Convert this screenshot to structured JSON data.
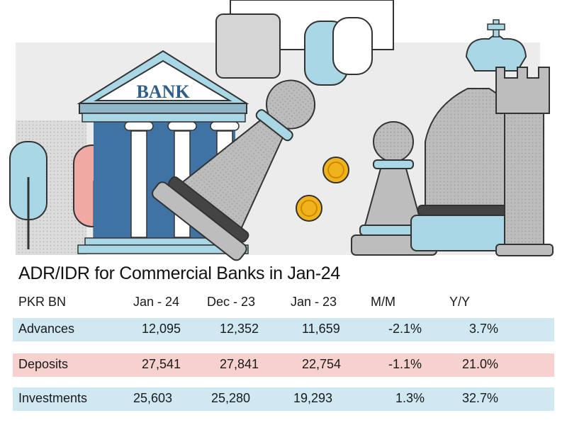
{
  "bank_sign": "BANK",
  "colors": {
    "advances_row": "#cfe8f1",
    "deposits_row": "#f6d1cd",
    "investments_row": "#cfe8f1"
  },
  "chart_data": {
    "type": "table",
    "title": "ADR/IDR for Commercial Banks in Jan-24",
    "columns": [
      "PKR BN",
      "Jan - 24",
      "Dec - 23",
      "Jan - 23",
      "M/M",
      "Y/Y"
    ],
    "rows": [
      {
        "label": "Advances",
        "cells": [
          "12,095",
          "12,352",
          "11,659",
          "-2.1%",
          "3.7%"
        ]
      },
      {
        "label": "Deposits",
        "cells": [
          "27,541",
          "27,841",
          "22,754",
          "-1.1%",
          "21.0%"
        ]
      },
      {
        "label": "Investments",
        "cells": [
          "25,603",
          "25,280",
          "19,293",
          "1.3%",
          "32.7%"
        ]
      }
    ]
  }
}
